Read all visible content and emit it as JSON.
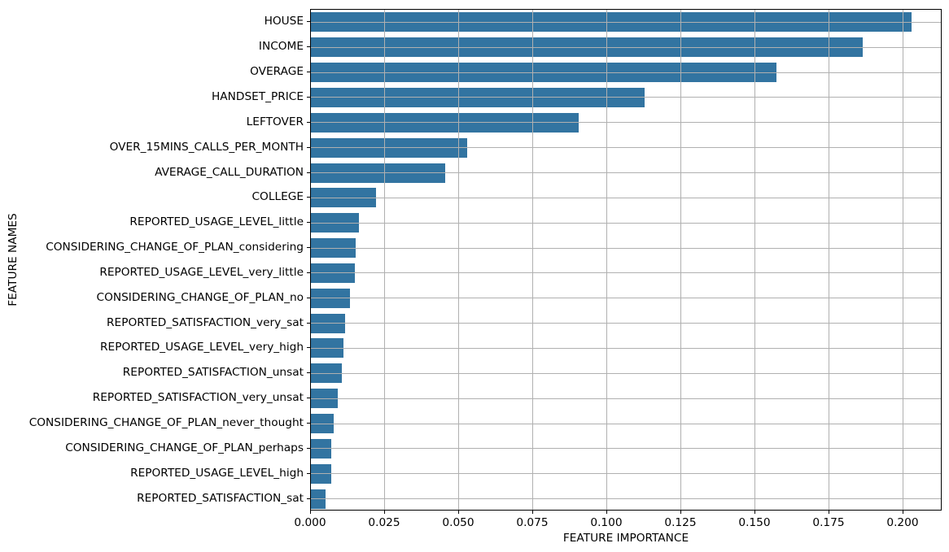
{
  "figure": {
    "background_color": "#ffffff",
    "bar_color": "#3274a1",
    "grid_color": "#b0b0b0",
    "spine_color": "#000000",
    "text_color": "#000000"
  },
  "chart_data": {
    "type": "bar",
    "orientation": "horizontal",
    "title": "",
    "xlabel": "FEATURE IMPORTANCE",
    "ylabel": "FEATURE NAMES",
    "grid": true,
    "legend": false,
    "xlim": [
      0,
      0.2132
    ],
    "xticks": [
      0,
      0.025,
      0.05,
      0.075,
      0.1,
      0.125,
      0.15,
      0.175,
      0.2
    ],
    "xtick_labels": [
      "0.000",
      "0.025",
      "0.050",
      "0.075",
      "0.100",
      "0.125",
      "0.150",
      "0.175",
      "0.200"
    ],
    "categories": [
      "HOUSE",
      "INCOME",
      "OVERAGE",
      "HANDSET_PRICE",
      "LEFTOVER",
      "OVER_15MINS_CALLS_PER_MONTH",
      "AVERAGE_CALL_DURATION",
      "COLLEGE",
      "REPORTED_USAGE_LEVEL_little",
      "CONSIDERING_CHANGE_OF_PLAN_considering",
      "REPORTED_USAGE_LEVEL_very_little",
      "CONSIDERING_CHANGE_OF_PLAN_no",
      "REPORTED_SATISFACTION_very_sat",
      "REPORTED_USAGE_LEVEL_very_high",
      "REPORTED_SATISFACTION_unsat",
      "REPORTED_SATISFACTION_very_unsat",
      "CONSIDERING_CHANGE_OF_PLAN_never_thought",
      "CONSIDERING_CHANGE_OF_PLAN_perhaps",
      "REPORTED_USAGE_LEVEL_high",
      "REPORTED_SATISFACTION_sat"
    ],
    "values": [
      0.2027,
      0.1863,
      0.1571,
      0.1126,
      0.0904,
      0.0527,
      0.0453,
      0.022,
      0.0162,
      0.0151,
      0.0148,
      0.0132,
      0.0115,
      0.011,
      0.0104,
      0.0091,
      0.0076,
      0.0069,
      0.0068,
      0.0049
    ]
  }
}
